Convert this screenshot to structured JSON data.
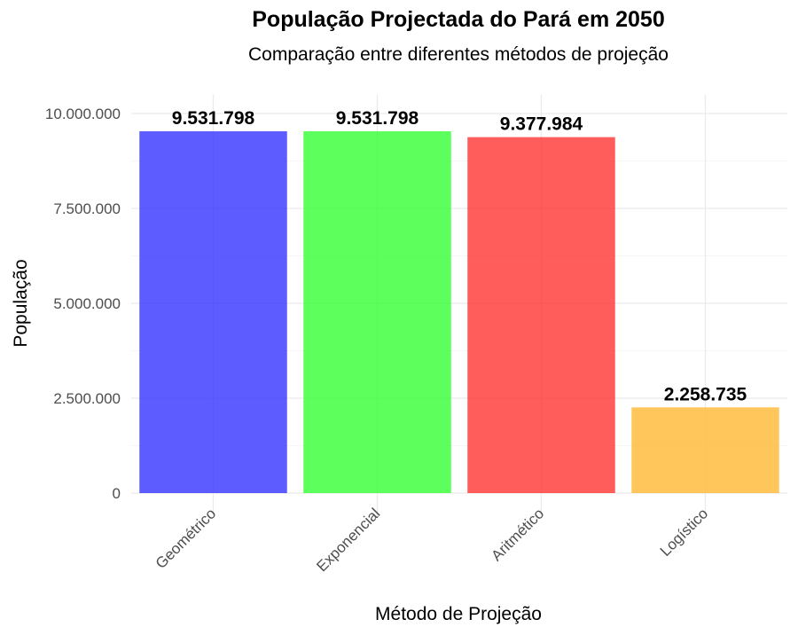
{
  "chart_data": {
    "type": "bar",
    "title": "População Projectada do Pará em 2050",
    "subtitle": "Comparação entre diferentes métodos de projeção",
    "xlabel": "Método de Projeção",
    "ylabel": "População",
    "categories": [
      "Geométrico",
      "Exponencial",
      "Aritmético",
      "Logístico"
    ],
    "values": [
      9531798,
      9531798,
      9377984,
      2258735
    ],
    "data_labels": [
      "9.531.798",
      "9.531.798",
      "9.377.984",
      "2.258.735"
    ],
    "colors": [
      "#3333ff",
      "#33ff33",
      "#ff3333",
      "#ffb833"
    ],
    "ylim": [
      0,
      10500000
    ],
    "yticks": [
      0,
      2500000,
      5000000,
      7500000,
      10000000
    ],
    "ytick_labels": [
      "0",
      "2.500.000",
      "5.000.000",
      "7.500.000",
      "10.000.000"
    ],
    "grid": true,
    "legend": "none"
  }
}
